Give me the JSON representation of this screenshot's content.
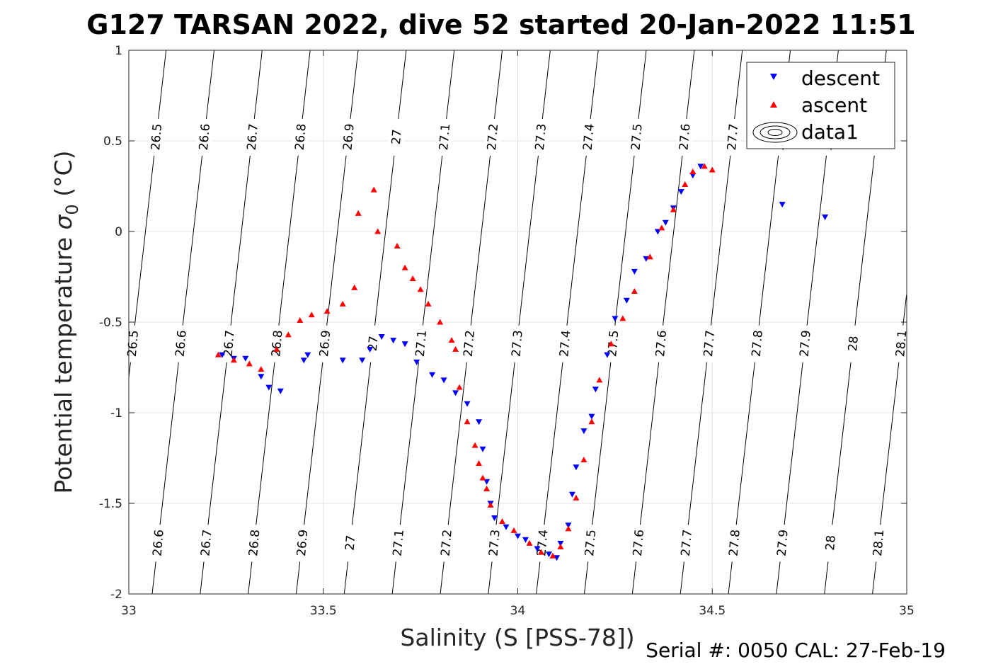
{
  "chart_data": {
    "type": "scatter",
    "title": "G127 TARSAN 2022, dive 52 started 20-Jan-2022 11:51",
    "xlabel": "Salinity (S [PSS-78])",
    "ylabel_main": "Potential temperature ",
    "ylabel_sigma": "σ",
    "ylabel_sub": "0",
    "ylabel_unit": " (°C)",
    "footnote": "Serial #: 0050  CAL: 27-Feb-19",
    "xlim": [
      33,
      35
    ],
    "ylim": [
      -2,
      1
    ],
    "grid": true,
    "legend_position": "top-right",
    "xticks": [
      "33",
      "33.5",
      "34",
      "34.5",
      "35"
    ],
    "yticks": [
      "-2",
      "-1.5",
      "-1",
      "-0.5",
      "0",
      "0.5",
      "1"
    ],
    "legend": [
      "descent",
      "ascent",
      "data1"
    ],
    "contour_levels": [
      "26.5",
      "26.6",
      "26.7",
      "26.8",
      "26.9",
      "27",
      "27.1",
      "27.2",
      "27.3",
      "27.4",
      "27.5",
      "27.6",
      "27.7",
      "27.8",
      "27.9",
      "28",
      "28.1"
    ],
    "colors": {
      "descent": "#0000ff",
      "ascent": "#ff0000",
      "contour": "#000000",
      "grid": "#e3e3e3"
    },
    "series": [
      {
        "name": "descent",
        "marker": "triangle-down",
        "points": [
          [
            33.24,
            -0.68
          ],
          [
            33.27,
            -0.7
          ],
          [
            33.3,
            -0.7
          ],
          [
            33.34,
            -0.8
          ],
          [
            33.36,
            -0.86
          ],
          [
            33.39,
            -0.88
          ],
          [
            33.45,
            -0.71
          ],
          [
            33.46,
            -0.68
          ],
          [
            33.55,
            -0.71
          ],
          [
            33.6,
            -0.71
          ],
          [
            33.62,
            -0.65
          ],
          [
            33.65,
            -0.58
          ],
          [
            33.68,
            -0.6
          ],
          [
            33.71,
            -0.62
          ],
          [
            33.74,
            -0.72
          ],
          [
            33.78,
            -0.79
          ],
          [
            33.81,
            -0.82
          ],
          [
            33.84,
            -0.89
          ],
          [
            33.87,
            -0.95
          ],
          [
            33.9,
            -1.05
          ],
          [
            33.91,
            -1.2
          ],
          [
            33.92,
            -1.38
          ],
          [
            33.93,
            -1.5
          ],
          [
            33.94,
            -1.58
          ],
          [
            33.97,
            -1.63
          ],
          [
            34.0,
            -1.68
          ],
          [
            34.02,
            -1.7
          ],
          [
            34.05,
            -1.75
          ],
          [
            34.08,
            -1.78
          ],
          [
            34.1,
            -1.8
          ],
          [
            34.11,
            -1.72
          ],
          [
            34.13,
            -1.62
          ],
          [
            34.14,
            -1.45
          ],
          [
            34.15,
            -1.3
          ],
          [
            34.17,
            -1.1
          ],
          [
            34.19,
            -1.02
          ],
          [
            34.2,
            -0.87
          ],
          [
            34.23,
            -0.68
          ],
          [
            34.25,
            -0.48
          ],
          [
            34.28,
            -0.38
          ],
          [
            34.3,
            -0.22
          ],
          [
            34.33,
            -0.15
          ],
          [
            34.36,
            0.0
          ],
          [
            34.38,
            0.05
          ],
          [
            34.4,
            0.13
          ],
          [
            34.42,
            0.22
          ],
          [
            34.45,
            0.31
          ],
          [
            34.47,
            0.36
          ],
          [
            34.68,
            0.15
          ],
          [
            34.79,
            0.08
          ]
        ]
      },
      {
        "name": "ascent",
        "marker": "triangle-up",
        "points": [
          [
            33.23,
            -0.68
          ],
          [
            33.27,
            -0.71
          ],
          [
            33.31,
            -0.73
          ],
          [
            33.34,
            -0.76
          ],
          [
            33.38,
            -0.65
          ],
          [
            33.41,
            -0.57
          ],
          [
            33.44,
            -0.49
          ],
          [
            33.47,
            -0.46
          ],
          [
            33.51,
            -0.44
          ],
          [
            33.55,
            -0.4
          ],
          [
            33.58,
            -0.31
          ],
          [
            33.59,
            0.1
          ],
          [
            33.63,
            0.23
          ],
          [
            33.64,
            0.0
          ],
          [
            33.69,
            -0.08
          ],
          [
            33.71,
            -0.2
          ],
          [
            33.73,
            -0.26
          ],
          [
            33.75,
            -0.32
          ],
          [
            33.77,
            -0.4
          ],
          [
            33.8,
            -0.5
          ],
          [
            33.83,
            -0.6
          ],
          [
            33.84,
            -0.65
          ],
          [
            33.85,
            -0.86
          ],
          [
            33.87,
            -1.05
          ],
          [
            33.89,
            -1.18
          ],
          [
            33.9,
            -1.28
          ],
          [
            33.91,
            -1.36
          ],
          [
            33.92,
            -1.42
          ],
          [
            33.93,
            -1.51
          ],
          [
            33.96,
            -1.6
          ],
          [
            33.99,
            -1.65
          ],
          [
            34.03,
            -1.72
          ],
          [
            34.06,
            -1.77
          ],
          [
            34.09,
            -1.79
          ],
          [
            34.11,
            -1.74
          ],
          [
            34.13,
            -1.64
          ],
          [
            34.15,
            -1.47
          ],
          [
            34.17,
            -1.26
          ],
          [
            34.19,
            -1.05
          ],
          [
            34.21,
            -0.82
          ],
          [
            34.24,
            -0.62
          ],
          [
            34.27,
            -0.48
          ],
          [
            34.3,
            -0.33
          ],
          [
            34.34,
            -0.14
          ],
          [
            34.37,
            0.02
          ],
          [
            34.4,
            0.12
          ],
          [
            34.43,
            0.26
          ],
          [
            34.45,
            0.33
          ],
          [
            34.48,
            0.36
          ],
          [
            34.5,
            0.34
          ]
        ]
      }
    ]
  }
}
